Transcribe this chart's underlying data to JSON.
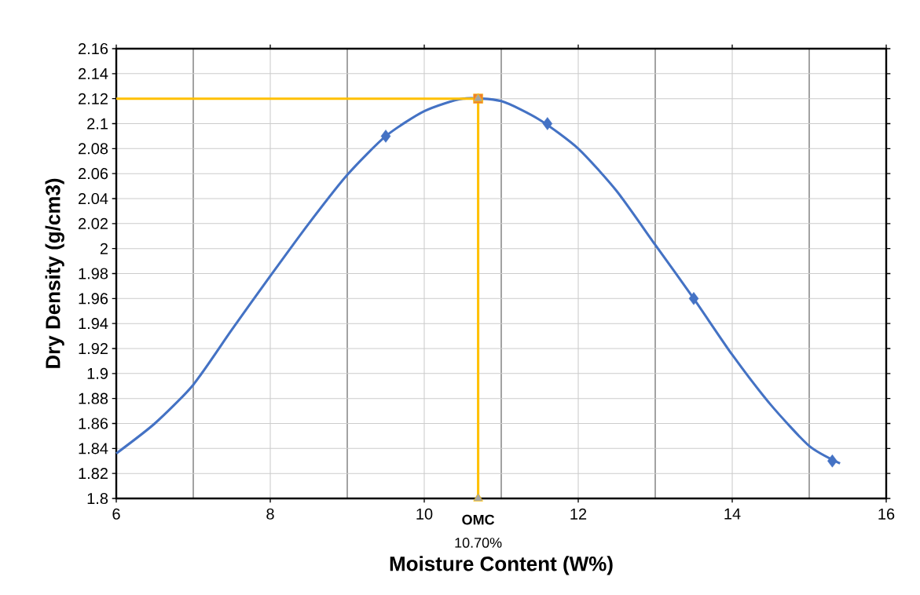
{
  "chart_data": {
    "type": "scatter",
    "xlabel": "Moisture Content (W%)",
    "ylabel": "Dry Density (g/cm3)",
    "xlim": [
      6,
      16
    ],
    "ylim": [
      1.8,
      2.16
    ],
    "xticks": [
      6,
      8,
      10,
      12,
      14,
      16
    ],
    "yticks": [
      1.8,
      1.82,
      1.84,
      1.86,
      1.88,
      1.9,
      1.92,
      1.94,
      1.96,
      1.98,
      2,
      2.02,
      2.04,
      2.06,
      2.08,
      2.1,
      2.12,
      2.14,
      2.16
    ],
    "grid": true,
    "series": [
      {
        "type": "line",
        "color": "#4472c4",
        "marker": "none",
        "line_style": "solid",
        "x": [
          6,
          6.5,
          7,
          7.5,
          8,
          8.5,
          9,
          9.5,
          10,
          10.5,
          11,
          11.5,
          12,
          12.5,
          13,
          13.5,
          14,
          14.5,
          15,
          15.4
        ],
        "values": [
          1.836,
          1.86,
          1.891,
          1.935,
          1.978,
          2.02,
          2.059,
          2.09,
          2.11,
          2.12,
          2.118,
          2.103,
          2.08,
          2.046,
          2.003,
          1.96,
          1.915,
          1.875,
          1.842,
          1.828
        ]
      },
      {
        "color": "#4472c4",
        "marker": "diamond",
        "x": [
          9.5,
          11.6,
          13.5,
          15.3
        ],
        "values": [
          2.09,
          2.1,
          1.96,
          1.83
        ]
      },
      {
        "type": "line",
        "color": "#ffc000",
        "marker": "none",
        "line_style": "solid",
        "x": [
          6,
          10.7,
          10.7
        ],
        "values": [
          2.12,
          2.12,
          1.8
        ]
      },
      {
        "color": "#ed7d31",
        "marker": "square",
        "x": [
          10.7
        ],
        "values": [
          2.12
        ]
      },
      {
        "color": "#a5a5a5",
        "marker": "triangle",
        "x": [
          10.7,
          10.7
        ],
        "values": [
          2.12,
          1.8
        ]
      }
    ],
    "annotations": [
      {
        "text": "OMC",
        "x": 10.7,
        "y": 1.8
      },
      {
        "text": "10.70%",
        "x": 10.7,
        "y": 1.8
      }
    ]
  }
}
